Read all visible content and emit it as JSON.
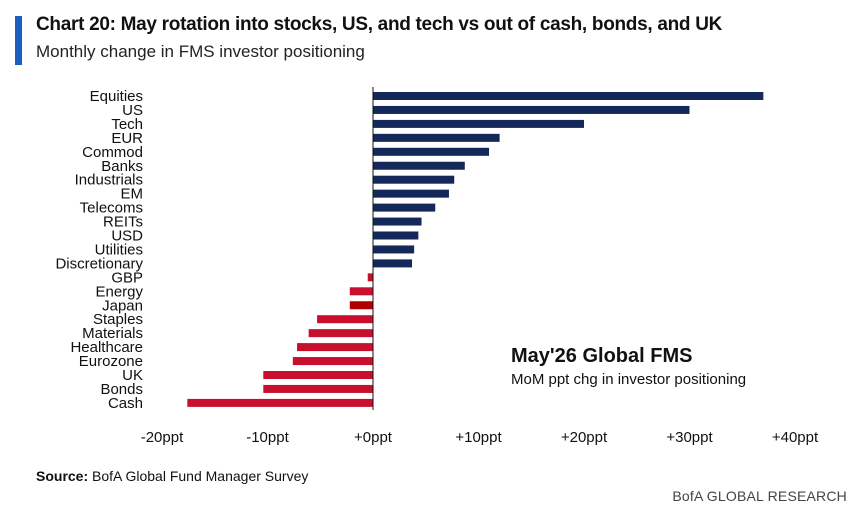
{
  "header": {
    "title": "Chart 20: May rotation into stocks, US, and tech vs out of cash, bonds, and UK",
    "subtitle": "Monthly change in FMS investor positioning"
  },
  "annotation": {
    "title": "May'26 Global FMS",
    "subtitle": "MoM ppt chg in investor positioning"
  },
  "footer": {
    "source_label": "Source:",
    "source_text": " BofA Global Fund Manager Survey",
    "brand": "BofA GLOBAL RESEARCH"
  },
  "colors": {
    "positive": "#14295a",
    "negative": "#c8102e",
    "highlight_negative": "#b00000",
    "accent": "#1b5fc1"
  },
  "chart_data": {
    "type": "bar",
    "orientation": "horizontal",
    "categories": [
      "Equities",
      "US",
      "Tech",
      "EUR",
      "Commod",
      "Banks",
      "Industrials",
      "EM",
      "Telecoms",
      "REITs",
      "USD",
      "Utilities",
      "Discretionary",
      "GBP",
      "Energy",
      "Japan",
      "Staples",
      "Materials",
      "Healthcare",
      "Eurozone",
      "UK",
      "Bonds",
      "Cash"
    ],
    "values": [
      37,
      30,
      20,
      12,
      11,
      8.7,
      7.7,
      7.2,
      5.9,
      4.6,
      4.3,
      3.9,
      3.7,
      -0.5,
      -2.2,
      -2.2,
      -5.3,
      -6.1,
      -7.2,
      -7.6,
      -10.4,
      -10.4,
      -17.6
    ],
    "highlight": [
      "Japan"
    ],
    "xlim": [
      -20,
      40
    ],
    "xticks": [
      -20,
      -10,
      0,
      10,
      20,
      30,
      40
    ],
    "xtick_labels": [
      "-20ppt",
      "-10ppt",
      "+0ppt",
      "+10ppt",
      "+20ppt",
      "+30ppt",
      "+40ppt"
    ],
    "xlabel": "",
    "ylabel": "",
    "grid": false,
    "legend": "none"
  }
}
